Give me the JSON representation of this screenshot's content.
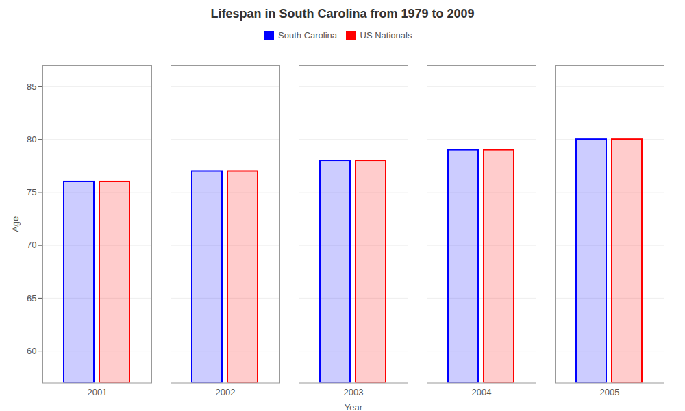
{
  "chart_data": {
    "type": "bar",
    "title": "Lifespan in South Carolina from 1979 to 2009",
    "x_label": "Year",
    "y_label": "Age",
    "categories": [
      "2001",
      "2002",
      "2003",
      "2004",
      "2005"
    ],
    "series": [
      {
        "name": "South Carolina",
        "color": "#0000ff",
        "values": [
          76,
          77,
          78,
          79,
          80
        ]
      },
      {
        "name": "US Nationals",
        "color": "#ff0000",
        "values": [
          76,
          77,
          78,
          79,
          80
        ]
      }
    ],
    "ylim": [
      57,
      87
    ],
    "yticks": [
      60,
      65,
      70,
      75,
      80,
      85
    ],
    "grid": true,
    "legend": "top"
  }
}
